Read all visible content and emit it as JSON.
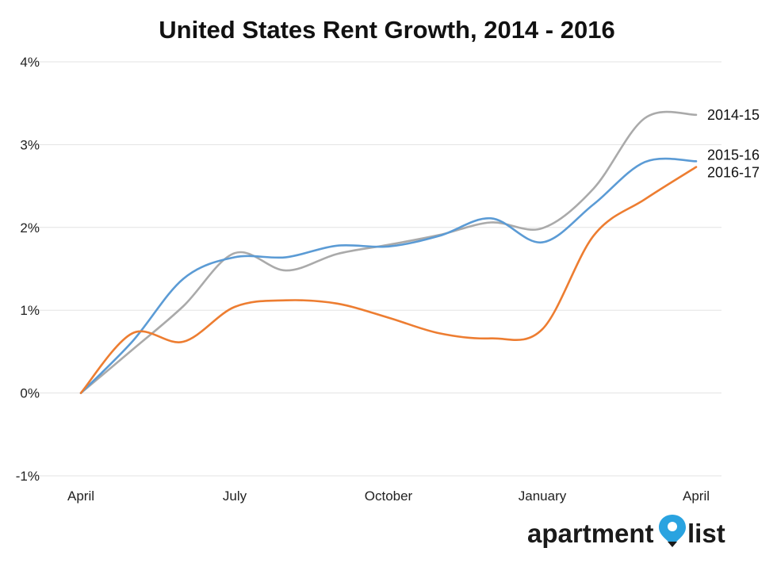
{
  "chart_data": {
    "type": "line",
    "title": "United States Rent Growth, 2014 - 2016",
    "xlabel": "",
    "ylabel": "",
    "x_tick_labels": [
      "April",
      "July",
      "October",
      "January",
      "April"
    ],
    "y_ticks": [
      -1,
      0,
      1,
      2,
      3,
      4
    ],
    "y_tick_labels": [
      "-1%",
      "0%",
      "1%",
      "2%",
      "3%",
      "4%"
    ],
    "ylim": [
      -1,
      4
    ],
    "x_months": [
      0,
      1,
      2,
      3,
      4,
      5,
      6,
      7,
      8,
      9,
      10,
      11,
      12
    ],
    "grid": true,
    "legend": "none",
    "series": [
      {
        "name": "2014-15",
        "color": "#aaaaaa",
        "values": [
          0,
          0.52,
          1.05,
          1.69,
          1.48,
          1.68,
          1.79,
          1.91,
          2.06,
          1.99,
          2.47,
          3.32,
          3.36
        ]
      },
      {
        "name": "2015-16",
        "color": "#5b9bd5",
        "values": [
          0,
          0.62,
          1.38,
          1.64,
          1.64,
          1.78,
          1.77,
          1.9,
          2.11,
          1.82,
          2.28,
          2.79,
          2.8
        ]
      },
      {
        "name": "2016-17",
        "color": "#ed7d31",
        "values": [
          0,
          0.72,
          0.62,
          1.04,
          1.12,
          1.08,
          0.91,
          0.72,
          0.66,
          0.77,
          1.9,
          2.34,
          2.73
        ]
      }
    ]
  },
  "logo": {
    "text_left": "apartment",
    "text_right": "list",
    "pin_color": "#2aa3e0"
  }
}
